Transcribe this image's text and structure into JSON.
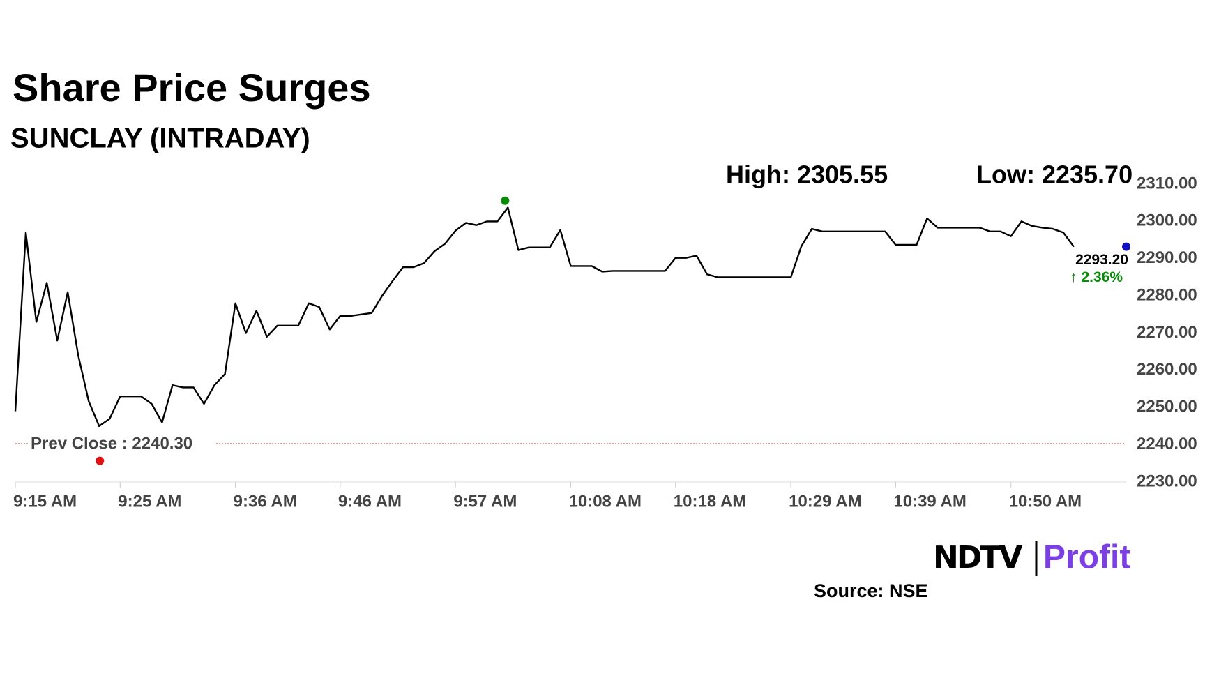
{
  "chart_data": {
    "type": "line",
    "title": "Share Price Surges",
    "subtitle": "SUNCLAY (INTRADAY)",
    "high": {
      "value": 2305.55,
      "label": "High: 2305.55"
    },
    "low": {
      "value": 2235.7,
      "label": "Low: 2235.70"
    },
    "prev_close": {
      "value": 2240.3,
      "label": "Prev Close : 2240.30"
    },
    "last_price": {
      "value": 2293.2,
      "label": "2293.20"
    },
    "change_label": "↑ 2.36%",
    "source": "Source: NSE",
    "logo": {
      "left": "NDTV",
      "right": "Profit"
    },
    "categories": [
      "9:15 AM",
      null,
      null,
      null,
      null,
      null,
      null,
      null,
      null,
      null,
      "9:25 AM",
      null,
      null,
      null,
      null,
      null,
      null,
      null,
      null,
      null,
      null,
      "9:36 AM",
      null,
      null,
      null,
      null,
      null,
      null,
      null,
      null,
      null,
      "9:46 AM",
      null,
      null,
      null,
      null,
      null,
      null,
      null,
      null,
      null,
      null,
      "9:57 AM",
      null,
      null,
      null,
      null,
      null,
      null,
      null,
      null,
      null,
      null,
      "10:08 AM",
      null,
      null,
      null,
      null,
      null,
      null,
      null,
      null,
      null,
      "10:18 AM",
      null,
      null,
      null,
      null,
      null,
      null,
      null,
      null,
      null,
      null,
      "10:29 AM",
      null,
      null,
      null,
      null,
      null,
      null,
      null,
      null,
      null,
      "10:39 AM",
      null,
      null,
      null,
      null,
      null,
      null,
      null,
      null,
      null,
      null,
      "10:50 AM",
      null,
      null,
      null,
      null,
      null,
      null
    ],
    "series": [
      {
        "name": "SUNCLAY",
        "color": "#000000",
        "values": [
          2249,
          2297,
          2273,
          2283.5,
          2268,
          2281,
          2264,
          2251.7,
          2245,
          2247,
          2253,
          2253,
          2253,
          2251,
          2246,
          2256,
          2255.4,
          2255.4,
          2251,
          2256,
          2259,
          2278,
          2270,
          2276,
          2269,
          2272,
          2272,
          2272,
          2278,
          2277,
          2271,
          2274.6,
          2274.6,
          2275,
          2275.4,
          2280,
          2284,
          2287.7,
          2287.7,
          2288.8,
          2292,
          2294,
          2297.5,
          2299.6,
          2299,
          2300,
          2300,
          2303.7,
          2292.3,
          2293,
          2293,
          2293,
          2297.7,
          2288,
          2288,
          2288,
          2286.5,
          2286.7,
          2286.7,
          2286.7,
          2286.7,
          2286.7,
          2286.7,
          2290.2,
          2290.2,
          2290.8,
          2285.8,
          2285,
          2285,
          2285,
          2285,
          2285,
          2285,
          2285,
          2285,
          2293.3,
          2298,
          2297.3,
          2297.3,
          2297.3,
          2297.3,
          2297.3,
          2297.3,
          2297.3,
          2293.7,
          2293.7,
          2293.7,
          2300.8,
          2298.3,
          2298.3,
          2298.3,
          2298.3,
          2298.3,
          2297.3,
          2297.3,
          2296,
          2300,
          2298.8,
          2298.3,
          2298,
          2297,
          2293.2
        ]
      }
    ],
    "xlim": [
      0,
      106
    ],
    "ylim": [
      2230,
      2310
    ],
    "yticks": [
      {
        "value": 2230,
        "label": "2230.00"
      },
      {
        "value": 2240,
        "label": "2240.00"
      },
      {
        "value": 2250,
        "label": "2250.00"
      },
      {
        "value": 2260,
        "label": "2260.00"
      },
      {
        "value": 2270,
        "label": "2270.00"
      },
      {
        "value": 2280,
        "label": "2280.00"
      },
      {
        "value": 2290,
        "label": "2290.00"
      },
      {
        "value": 2300,
        "label": "2300.00"
      },
      {
        "value": 2310,
        "label": "2310.00"
      }
    ],
    "high_color": "#0a8a0a",
    "low_color": "#e01010",
    "last_color": "#1010c0",
    "prev_close_color": "#c0392b",
    "change_color": "#0a8a0a"
  }
}
